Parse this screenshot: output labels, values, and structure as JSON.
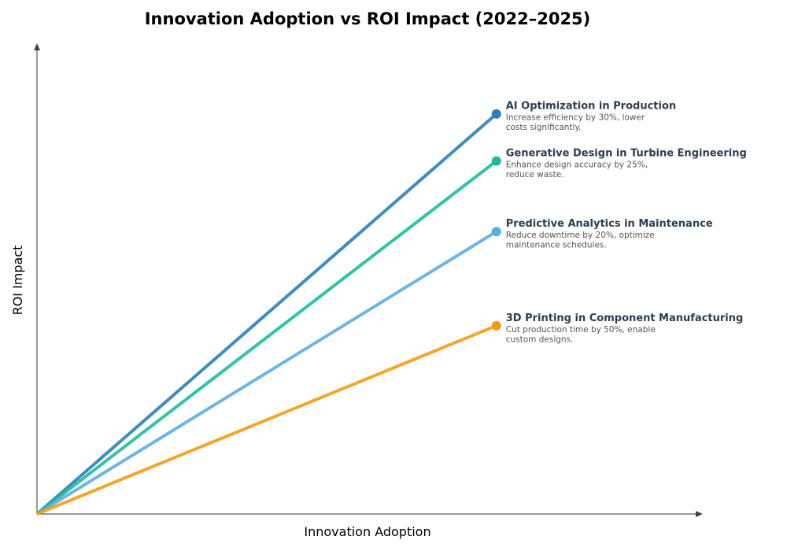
{
  "chart_data": {
    "type": "line",
    "title": "Innovation Adoption vs ROI Impact (2022–2025)",
    "xlabel": "Innovation Adoption",
    "ylabel": "ROI Impact",
    "xlim": [
      0,
      1
    ],
    "ylim": [
      0,
      1
    ],
    "grid": false,
    "series": [
      {
        "name": "AI Optimization in Production",
        "description": [
          "Increase efficiency by 30%, lower",
          "costs significantly."
        ],
        "color": "#2980b9",
        "x": [
          0,
          0.69
        ],
        "y": [
          0,
          0.85
        ]
      },
      {
        "name": "Generative Design in Turbine Engineering",
        "description": [
          "Enhance design accuracy by 25%,",
          "reduce waste."
        ],
        "color": "#1abc9c",
        "x": [
          0,
          0.69
        ],
        "y": [
          0,
          0.75
        ]
      },
      {
        "name": "Predictive Analytics in Maintenance",
        "description": [
          "Reduce downtime by 20%, optimize",
          "maintenance schedules."
        ],
        "color": "#5dade2",
        "x": [
          0,
          0.69
        ],
        "y": [
          0,
          0.6
        ]
      },
      {
        "name": "3D Printing in Component Manufacturing",
        "description": [
          "Cut production time by 50%, enable",
          "custom designs."
        ],
        "color": "#f39c12",
        "x": [
          0,
          0.69
        ],
        "y": [
          0,
          0.4
        ]
      }
    ]
  }
}
